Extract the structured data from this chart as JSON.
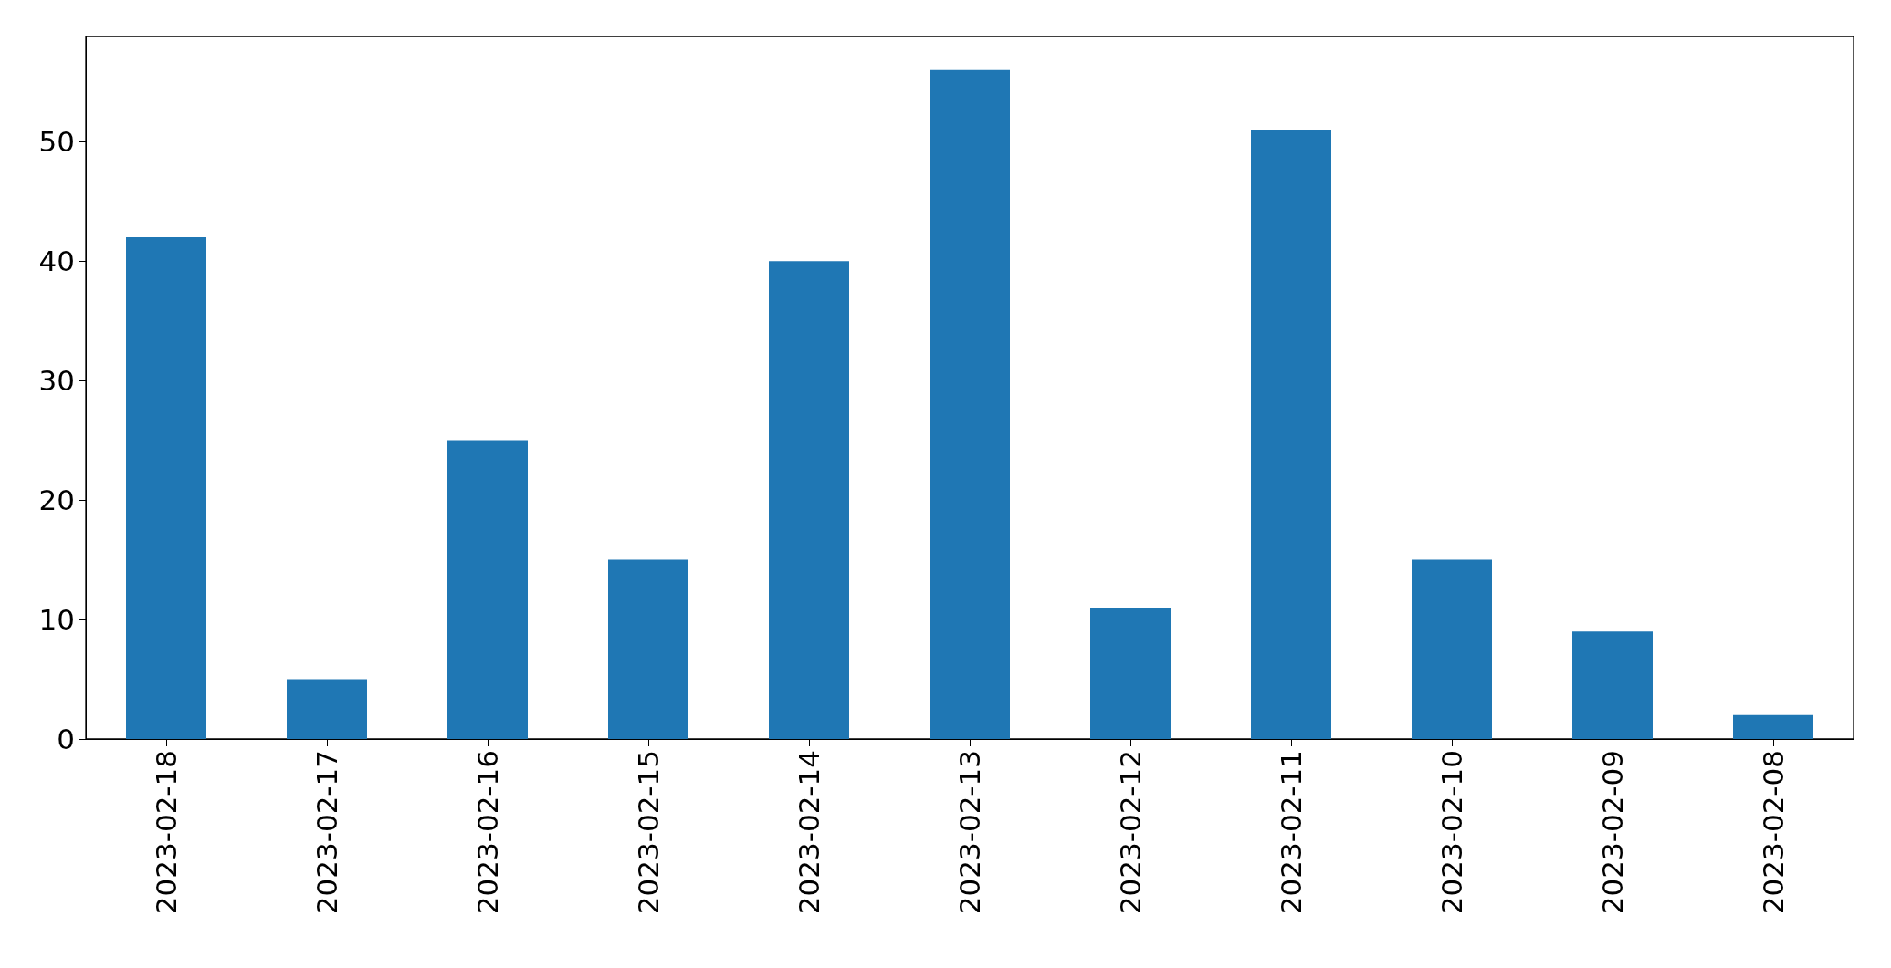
{
  "chart_data": {
    "type": "bar",
    "categories": [
      "2023-02-18",
      "2023-02-17",
      "2023-02-16",
      "2023-02-15",
      "2023-02-14",
      "2023-02-13",
      "2023-02-12",
      "2023-02-11",
      "2023-02-10",
      "2023-02-09",
      "2023-02-08"
    ],
    "values": [
      42,
      5,
      25,
      15,
      40,
      56,
      11,
      51,
      15,
      9,
      2
    ],
    "color": "#1f77b4",
    "ylim": [
      0,
      58.8
    ],
    "yticks": [
      0,
      10,
      20,
      30,
      40,
      50
    ]
  }
}
